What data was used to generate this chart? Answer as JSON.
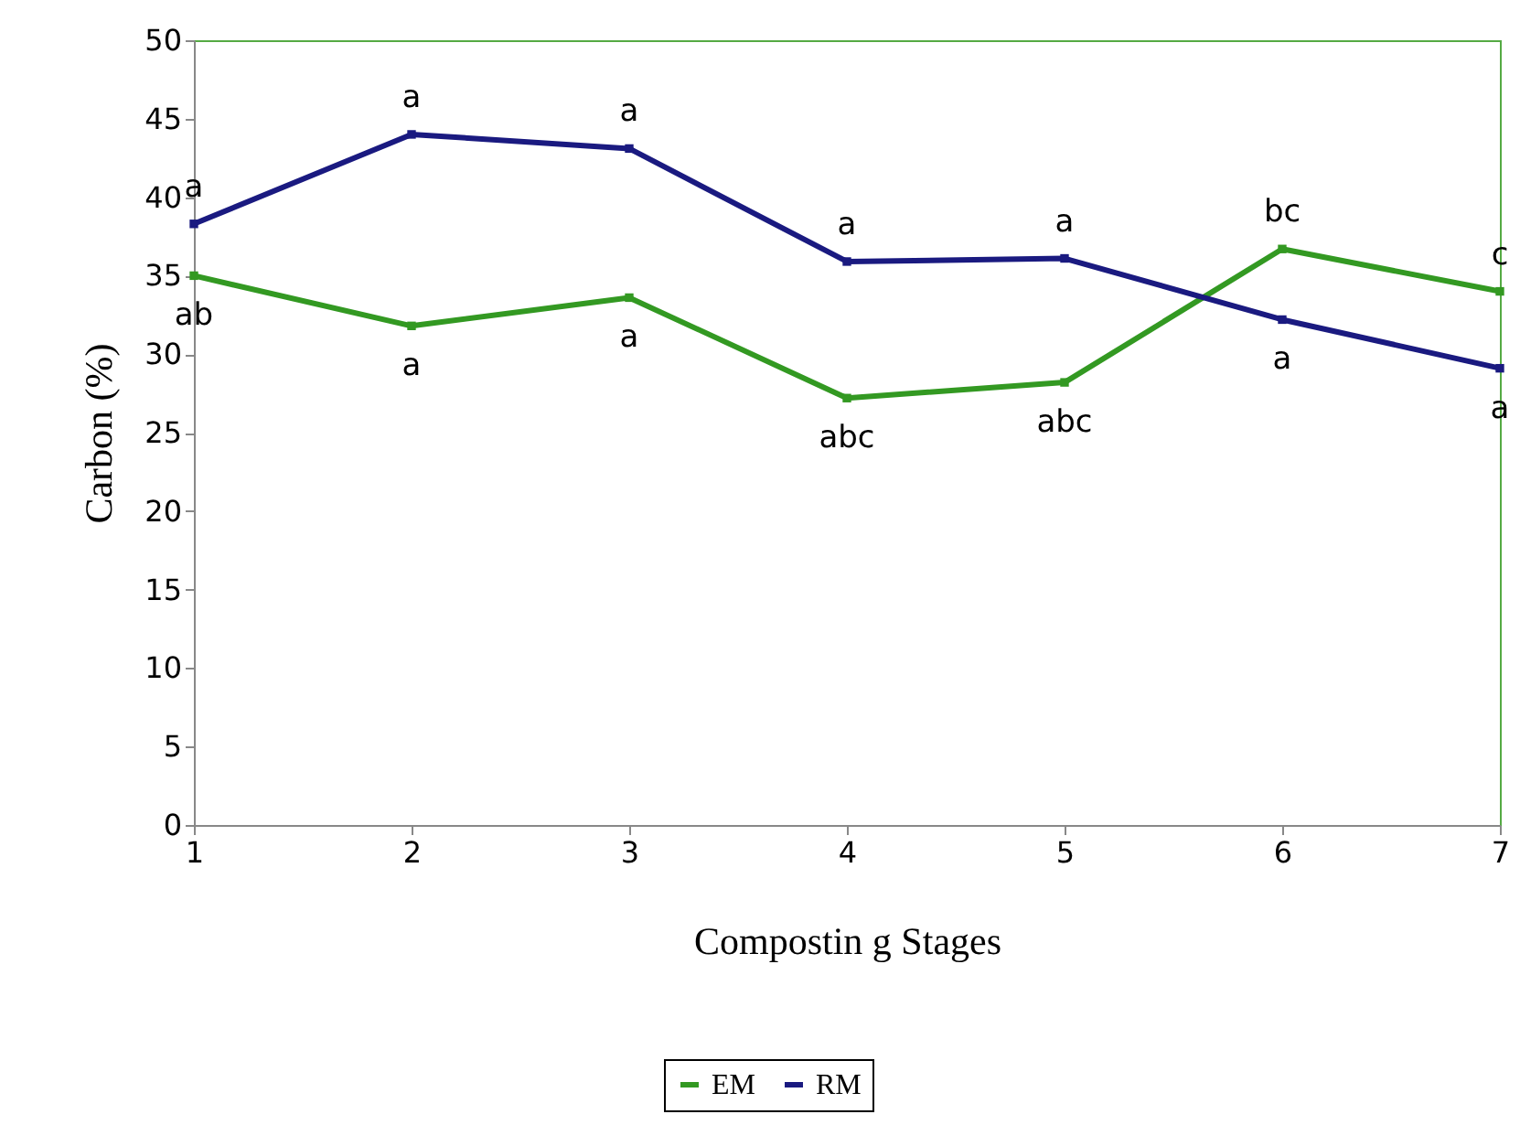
{
  "chart_data": {
    "type": "line",
    "xlabel": "Compostin g Stages",
    "ylabel": "Carbon (%)",
    "x": [
      1,
      2,
      3,
      4,
      5,
      6,
      7
    ],
    "series": [
      {
        "name": "EM",
        "color": "#339922",
        "values": [
          35.0,
          31.8,
          33.6,
          27.2,
          28.2,
          36.7,
          34.0
        ]
      },
      {
        "name": "RM",
        "color": "#1a1a80",
        "values": [
          38.3,
          44.0,
          43.1,
          35.9,
          36.1,
          32.2,
          29.1
        ]
      }
    ],
    "xlim": [
      1,
      7
    ],
    "xticks": [
      1,
      2,
      3,
      4,
      5,
      6,
      7
    ],
    "ylim": [
      0,
      50
    ],
    "yticks": [
      0,
      5,
      10,
      15,
      20,
      25,
      30,
      35,
      40,
      45,
      50
    ],
    "marker": "square",
    "line_style": "solid",
    "legend": "bottom",
    "annotations": [
      {
        "text": "a",
        "x": 1,
        "y": 38.3
      },
      {
        "text": "ab",
        "x": 1,
        "y": 35.0
      },
      {
        "text": "a",
        "x": 2,
        "y": 44.0
      },
      {
        "text": "a",
        "x": 2,
        "y": 31.8
      },
      {
        "text": "a",
        "x": 3,
        "y": 43.1
      },
      {
        "text": "a",
        "x": 3,
        "y": 33.6
      },
      {
        "text": "a",
        "x": 4,
        "y": 35.9
      },
      {
        "text": "abc",
        "x": 4,
        "y": 27.2
      },
      {
        "text": "a",
        "x": 5,
        "y": 36.1
      },
      {
        "text": "abc",
        "x": 5,
        "y": 28.2
      },
      {
        "text": "bc",
        "x": 6,
        "y": 36.7
      },
      {
        "text": "a",
        "x": 6,
        "y": 32.2
      },
      {
        "text": "c",
        "x": 7,
        "y": 34.0
      },
      {
        "text": "a",
        "x": 7,
        "y": 29.1
      }
    ]
  }
}
